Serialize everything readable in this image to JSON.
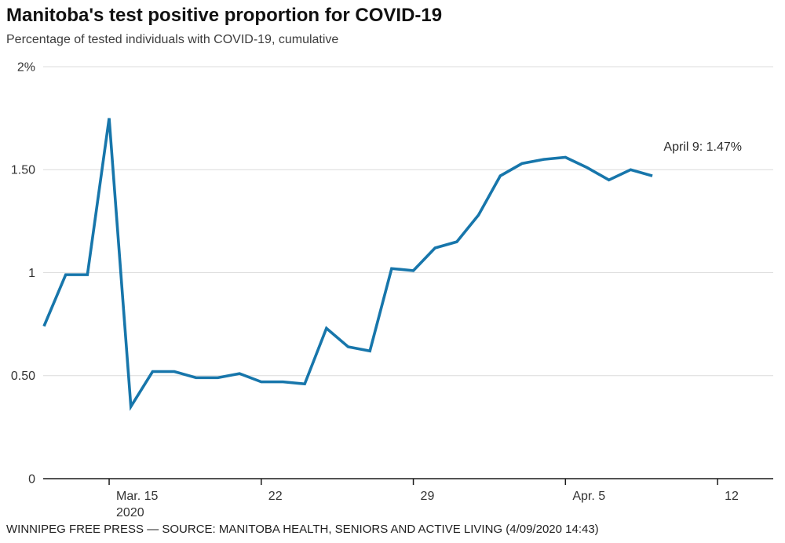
{
  "header": {
    "title": "Manitoba's test positive proportion for COVID-19",
    "subtitle": "Percentage of tested individuals with COVID-19, cumulative"
  },
  "chart_data": {
    "type": "line",
    "title": "Manitoba's test positive proportion for COVID-19",
    "subtitle": "Percentage of tested individuals with COVID-19, cumulative",
    "series_name": "Test positive proportion (%)",
    "x": [
      "Mar. 12",
      "Mar. 13",
      "Mar. 14",
      "Mar. 15",
      "Mar. 16",
      "Mar. 17",
      "Mar. 18",
      "Mar. 19",
      "Mar. 20",
      "Mar. 21",
      "Mar. 22",
      "Mar. 23",
      "Mar. 24",
      "Mar. 25",
      "Mar. 26",
      "Mar. 27",
      "Mar. 28",
      "Mar. 29",
      "Mar. 30",
      "Mar. 31",
      "Apr. 1",
      "Apr. 2",
      "Apr. 3",
      "Apr. 4",
      "Apr. 5",
      "Apr. 6",
      "Apr. 7",
      "Apr. 8",
      "Apr. 9"
    ],
    "values": [
      0.74,
      0.99,
      0.99,
      1.75,
      0.35,
      0.52,
      0.52,
      0.49,
      0.49,
      0.51,
      0.47,
      0.47,
      0.46,
      0.73,
      0.64,
      0.62,
      1.02,
      1.01,
      1.12,
      1.15,
      1.28,
      1.47,
      1.53,
      1.55,
      1.56,
      1.51,
      1.45,
      1.5,
      1.47
    ],
    "ylim": [
      0,
      2
    ],
    "yticks": [
      {
        "value": 0,
        "label": "0"
      },
      {
        "value": 0.5,
        "label": "0.50"
      },
      {
        "value": 1,
        "label": "1"
      },
      {
        "value": 1.5,
        "label": "1.50"
      },
      {
        "value": 2,
        "label": "2%"
      }
    ],
    "xticks": [
      {
        "index": 3,
        "label": "Mar. 15",
        "sublabel": "2020"
      },
      {
        "index": 10,
        "label": "22"
      },
      {
        "index": 17,
        "label": "29"
      },
      {
        "index": 24,
        "label": "Apr. 5"
      },
      {
        "index": 31,
        "label": "12"
      }
    ],
    "annotation": {
      "text": "April 9: 1.47%"
    },
    "grid": true,
    "legend": "none",
    "line_color": "#1776ab",
    "grid_color": "#dcdcdc",
    "axis_color": "#1a1a1a"
  },
  "footer": {
    "credit": "WINNIPEG FREE PRESS — SOURCE: MANITOBA HEALTH, SENIORS AND ACTIVE LIVING (4/09/2020 14:43)"
  }
}
